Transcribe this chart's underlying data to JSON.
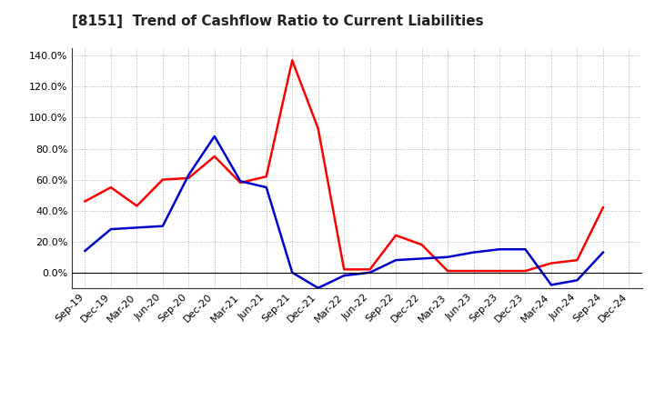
{
  "title": "[8151]  Trend of Cashflow Ratio to Current Liabilities",
  "x_labels": [
    "Sep-19",
    "Dec-19",
    "Mar-20",
    "Jun-20",
    "Sep-20",
    "Dec-20",
    "Mar-21",
    "Jun-21",
    "Sep-21",
    "Dec-21",
    "Mar-22",
    "Jun-22",
    "Sep-22",
    "Dec-22",
    "Mar-23",
    "Jun-23",
    "Sep-23",
    "Dec-23",
    "Mar-24",
    "Jun-24",
    "Sep-24",
    "Dec-24"
  ],
  "operating_cf": [
    0.46,
    0.55,
    0.43,
    0.6,
    0.61,
    0.75,
    0.58,
    0.62,
    1.37,
    0.93,
    0.02,
    0.02,
    0.24,
    0.18,
    0.01,
    0.01,
    0.01,
    0.01,
    0.06,
    0.08,
    0.42,
    null
  ],
  "free_cf": [
    0.14,
    0.28,
    0.29,
    0.3,
    0.63,
    0.88,
    0.59,
    0.55,
    0.0,
    -0.1,
    -0.02,
    0.0,
    0.08,
    0.09,
    0.1,
    0.13,
    0.15,
    0.15,
    -0.08,
    -0.05,
    0.13,
    null
  ],
  "operating_color": "#FF0000",
  "free_color": "#0000CC",
  "ylim": [
    -0.1,
    1.45
  ],
  "yticks": [
    0.0,
    0.2,
    0.4,
    0.6,
    0.8,
    1.0,
    1.2,
    1.4
  ],
  "background_color": "#FFFFFF",
  "grid_color": "#999999",
  "title_fontsize": 11,
  "legend_fontsize": 9,
  "tick_fontsize": 8
}
